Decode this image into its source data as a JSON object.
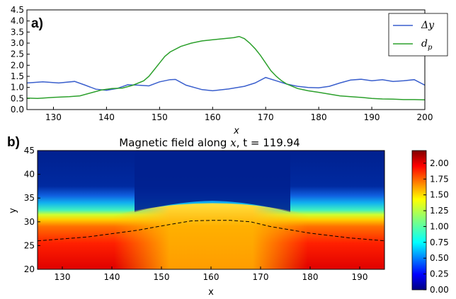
{
  "chart_data": [
    {
      "type": "line",
      "panel_label": "a)",
      "xlim": [
        125,
        200
      ],
      "ylim": [
        0.0,
        4.5
      ],
      "x_ticks": [
        "130",
        "140",
        "150",
        "160",
        "170",
        "180",
        "190",
        "200"
      ],
      "y_ticks": [
        "0.0",
        "0.5",
        "1.0",
        "1.5",
        "2.0",
        "2.5",
        "3.0",
        "3.5",
        "4.0",
        "4.5"
      ],
      "xlabel": "x",
      "legend_position": "top-right",
      "grid": false,
      "series": [
        {
          "name": "Δy",
          "color": "#3a5fcd",
          "points": [
            [
              125,
              1.2
            ],
            [
              128,
              1.25
            ],
            [
              131,
              1.2
            ],
            [
              134,
              1.27
            ],
            [
              136,
              1.1
            ],
            [
              138,
              0.92
            ],
            [
              140,
              0.87
            ],
            [
              142,
              0.95
            ],
            [
              144,
              1.12
            ],
            [
              146,
              1.1
            ],
            [
              148,
              1.07
            ],
            [
              150,
              1.25
            ],
            [
              152,
              1.35
            ],
            [
              153,
              1.36
            ],
            [
              155,
              1.1
            ],
            [
              158,
              0.9
            ],
            [
              160,
              0.85
            ],
            [
              163,
              0.93
            ],
            [
              166,
              1.05
            ],
            [
              168,
              1.2
            ],
            [
              170,
              1.45
            ],
            [
              172,
              1.3
            ],
            [
              174,
              1.15
            ],
            [
              176,
              1.05
            ],
            [
              178,
              1.0
            ],
            [
              180,
              0.98
            ],
            [
              182,
              1.05
            ],
            [
              184,
              1.2
            ],
            [
              186,
              1.33
            ],
            [
              188,
              1.37
            ],
            [
              190,
              1.3
            ],
            [
              192,
              1.35
            ],
            [
              194,
              1.27
            ],
            [
              196,
              1.3
            ],
            [
              198,
              1.35
            ],
            [
              200,
              1.1
            ]
          ]
        },
        {
          "name": "d_p",
          "color": "#2ca02c",
          "points": [
            [
              125,
              0.52
            ],
            [
              127,
              0.5
            ],
            [
              130,
              0.55
            ],
            [
              133,
              0.58
            ],
            [
              135,
              0.62
            ],
            [
              137,
              0.75
            ],
            [
              139,
              0.88
            ],
            [
              141,
              0.95
            ],
            [
              143,
              0.97
            ],
            [
              145,
              1.1
            ],
            [
              147,
              1.3
            ],
            [
              148,
              1.5
            ],
            [
              149,
              1.8
            ],
            [
              150,
              2.1
            ],
            [
              151,
              2.4
            ],
            [
              152,
              2.6
            ],
            [
              154,
              2.85
            ],
            [
              156,
              3.0
            ],
            [
              158,
              3.1
            ],
            [
              160,
              3.15
            ],
            [
              162,
              3.2
            ],
            [
              164,
              3.25
            ],
            [
              165,
              3.3
            ],
            [
              166,
              3.2
            ],
            [
              167,
              3.0
            ],
            [
              168,
              2.75
            ],
            [
              169,
              2.45
            ],
            [
              170,
              2.1
            ],
            [
              171,
              1.75
            ],
            [
              172,
              1.5
            ],
            [
              173,
              1.3
            ],
            [
              174,
              1.15
            ],
            [
              176,
              0.95
            ],
            [
              178,
              0.85
            ],
            [
              180,
              0.78
            ],
            [
              182,
              0.7
            ],
            [
              184,
              0.62
            ],
            [
              186,
              0.58
            ],
            [
              188,
              0.55
            ],
            [
              190,
              0.5
            ],
            [
              192,
              0.48
            ],
            [
              194,
              0.47
            ],
            [
              196,
              0.45
            ],
            [
              198,
              0.45
            ],
            [
              200,
              0.44
            ]
          ]
        }
      ]
    },
    {
      "type": "heatmap",
      "panel_label": "b)",
      "title_prefix": "Magnetic field along ",
      "title_var": "x",
      "title_suffix": ", t = 119.94",
      "xlim": [
        125,
        195
      ],
      "ylim": [
        20,
        45
      ],
      "x_ticks": [
        "130",
        "140",
        "150",
        "160",
        "170",
        "180",
        "190"
      ],
      "y_ticks": [
        "20",
        "25",
        "30",
        "35",
        "40",
        "45"
      ],
      "xlabel": "x",
      "ylabel": "y",
      "colormap": "jet",
      "color_range": [
        0.0,
        2.2
      ],
      "colorbar_ticks": [
        "0.00",
        "0.25",
        "0.50",
        "0.75",
        "1.00",
        "1.25",
        "1.50",
        "1.75",
        "2.00"
      ],
      "interface_line": {
        "style": "dashed",
        "color": "#000000",
        "points": [
          [
            125,
            26.0
          ],
          [
            135,
            26.8
          ],
          [
            145,
            28.2
          ],
          [
            152,
            29.5
          ],
          [
            156,
            30.2
          ],
          [
            160,
            30.3
          ],
          [
            164,
            30.3
          ],
          [
            168,
            30.0
          ],
          [
            172,
            29.0
          ],
          [
            180,
            27.6
          ],
          [
            188,
            26.6
          ],
          [
            195,
            26.0
          ]
        ]
      }
    }
  ]
}
